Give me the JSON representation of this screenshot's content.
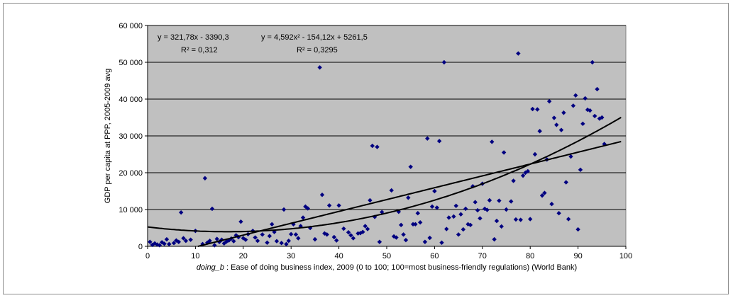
{
  "chart_data": {
    "type": "scatter",
    "xlabel_var": "doing_b",
    "xlabel_rest": " : Ease of doing business index, 2009 (0 to 100; 100=most business-friendly regulations) (World Bank)",
    "ylabel": "GDP per capita at PPP, 2005-2009 avg",
    "xlim": [
      0,
      100
    ],
    "ylim": [
      0,
      60000
    ],
    "x_ticks": [
      0,
      10,
      20,
      30,
      40,
      50,
      60,
      70,
      80,
      90,
      100
    ],
    "x_tick_labels": [
      "0",
      "10",
      "20",
      "30",
      "40",
      "50",
      "60",
      "70",
      "80",
      "90",
      "100"
    ],
    "y_ticks": [
      0,
      10000,
      20000,
      30000,
      40000,
      50000,
      60000
    ],
    "y_tick_labels": [
      "0",
      "10 000",
      "20 000",
      "30 000",
      "40 000",
      "50 000",
      "60 000"
    ],
    "grid": "horizontal",
    "plot_background": "#c0c0c0",
    "marker_color": "#000080",
    "trendline_color": "#000000",
    "trendlines": [
      {
        "kind": "linear",
        "coefficients": [
          321.78,
          -3390.3
        ],
        "x_range": [
          10.5,
          99
        ],
        "equation": "y = 321,78x - 3390,3",
        "r2": "R² = 0,312"
      },
      {
        "kind": "quadratic",
        "coefficients": [
          4.592,
          -154.12,
          5261.5
        ],
        "x_range": [
          0,
          99
        ],
        "equation": "y = 4,592x² - 154,12x + 5261,5",
        "r2": "R² = 0,3295"
      }
    ],
    "points": [
      [
        0.5,
        1200
      ],
      [
        1,
        400
      ],
      [
        1.5,
        800
      ],
      [
        2,
        500
      ],
      [
        2.5,
        300
      ],
      [
        3,
        1100
      ],
      [
        3.5,
        700
      ],
      [
        4,
        1900
      ],
      [
        4.5,
        600
      ],
      [
        5.5,
        900
      ],
      [
        6,
        1600
      ],
      [
        6.5,
        1200
      ],
      [
        7,
        9200
      ],
      [
        7.5,
        2200
      ],
      [
        8,
        1500
      ],
      [
        9,
        1800
      ],
      [
        10,
        4200
      ],
      [
        11.5,
        600
      ],
      [
        12,
        18500
      ],
      [
        12.5,
        1000
      ],
      [
        13,
        1500
      ],
      [
        13.5,
        10200
      ],
      [
        14,
        300
      ],
      [
        14.5,
        2000
      ],
      [
        15,
        1200
      ],
      [
        15.5,
        1800
      ],
      [
        16,
        800
      ],
      [
        16.5,
        1300
      ],
      [
        17,
        1600
      ],
      [
        17.5,
        2100
      ],
      [
        18,
        1400
      ],
      [
        18.5,
        3000
      ],
      [
        19,
        2500
      ],
      [
        19.5,
        6700
      ],
      [
        20,
        2200
      ],
      [
        20.5,
        1800
      ],
      [
        21,
        3300
      ],
      [
        22,
        4200
      ],
      [
        22.5,
        2400
      ],
      [
        23,
        1500
      ],
      [
        24,
        3200
      ],
      [
        25,
        1000
      ],
      [
        25.5,
        2800
      ],
      [
        26,
        6000
      ],
      [
        26.5,
        3900
      ],
      [
        27,
        1400
      ],
      [
        28,
        900
      ],
      [
        28.5,
        10000
      ],
      [
        29,
        600
      ],
      [
        29.5,
        1500
      ],
      [
        30,
        3300
      ],
      [
        30.5,
        6000
      ],
      [
        31,
        3200
      ],
      [
        31.5,
        2200
      ],
      [
        32,
        5500
      ],
      [
        32.5,
        7800
      ],
      [
        33,
        10800
      ],
      [
        33.5,
        10300
      ],
      [
        34,
        5000
      ],
      [
        35,
        1900
      ],
      [
        36,
        48600
      ],
      [
        36.5,
        14000
      ],
      [
        37,
        3500
      ],
      [
        37.5,
        3200
      ],
      [
        38,
        11100
      ],
      [
        39,
        2500
      ],
      [
        39.5,
        1600
      ],
      [
        40,
        11100
      ],
      [
        41,
        4800
      ],
      [
        42,
        3800
      ],
      [
        42.5,
        3000
      ],
      [
        43,
        2200
      ],
      [
        44,
        3500
      ],
      [
        44.5,
        3600
      ],
      [
        45,
        3900
      ],
      [
        45.5,
        5500
      ],
      [
        46,
        4700
      ],
      [
        46.5,
        12500
      ],
      [
        47,
        27300
      ],
      [
        47.5,
        8000
      ],
      [
        48,
        27000
      ],
      [
        48.5,
        1200
      ],
      [
        49,
        9300
      ],
      [
        51,
        15200
      ],
      [
        51.5,
        2700
      ],
      [
        52,
        2400
      ],
      [
        52.5,
        9400
      ],
      [
        53,
        5800
      ],
      [
        53.5,
        3200
      ],
      [
        54,
        1700
      ],
      [
        54.5,
        13200
      ],
      [
        55,
        21600
      ],
      [
        55.5,
        6000
      ],
      [
        56,
        6000
      ],
      [
        56.5,
        9000
      ],
      [
        57,
        6500
      ],
      [
        58,
        1200
      ],
      [
        58.5,
        29300
      ],
      [
        59,
        2300
      ],
      [
        59.5,
        10800
      ],
      [
        60,
        15000
      ],
      [
        60.5,
        10500
      ],
      [
        61,
        28600
      ],
      [
        61.5,
        1000
      ],
      [
        62,
        50000
      ],
      [
        62.5,
        4700
      ],
      [
        63,
        7800
      ],
      [
        64,
        8100
      ],
      [
        64.5,
        11000
      ],
      [
        65,
        3200
      ],
      [
        65.5,
        8700
      ],
      [
        66,
        4600
      ],
      [
        66.5,
        10200
      ],
      [
        67,
        6000
      ],
      [
        67.5,
        5800
      ],
      [
        68,
        16300
      ],
      [
        68.5,
        12000
      ],
      [
        69,
        9800
      ],
      [
        69.5,
        7600
      ],
      [
        70,
        17000
      ],
      [
        70.5,
        10200
      ],
      [
        71,
        9900
      ],
      [
        71.5,
        12500
      ],
      [
        72,
        28400
      ],
      [
        72.5,
        1900
      ],
      [
        73,
        6900
      ],
      [
        73.5,
        12400
      ],
      [
        74,
        5400
      ],
      [
        74.5,
        25500
      ],
      [
        75,
        10000
      ],
      [
        76,
        12200
      ],
      [
        76.5,
        17800
      ],
      [
        77,
        7300
      ],
      [
        77.5,
        52400
      ],
      [
        78,
        7200
      ],
      [
        78.5,
        19200
      ],
      [
        79,
        20000
      ],
      [
        79.5,
        20400
      ],
      [
        80,
        7400
      ],
      [
        80.5,
        37300
      ],
      [
        81,
        25000
      ],
      [
        81.5,
        37200
      ],
      [
        82,
        31300
      ],
      [
        82.5,
        13800
      ],
      [
        83,
        14500
      ],
      [
        83.5,
        23600
      ],
      [
        84,
        39400
      ],
      [
        84.5,
        11500
      ],
      [
        85,
        34900
      ],
      [
        85.5,
        33000
      ],
      [
        86,
        9000
      ],
      [
        86.5,
        31600
      ],
      [
        87,
        36300
      ],
      [
        87.5,
        17400
      ],
      [
        88,
        7400
      ],
      [
        88.5,
        24400
      ],
      [
        89,
        38200
      ],
      [
        89.5,
        41000
      ],
      [
        90,
        4600
      ],
      [
        90.5,
        20800
      ],
      [
        91,
        33300
      ],
      [
        91.5,
        40200
      ],
      [
        92,
        37100
      ],
      [
        92.5,
        36900
      ],
      [
        93,
        50000
      ],
      [
        93.5,
        35400
      ],
      [
        94,
        42700
      ],
      [
        94.5,
        34700
      ],
      [
        95,
        35000
      ],
      [
        95.5,
        27800
      ]
    ]
  }
}
